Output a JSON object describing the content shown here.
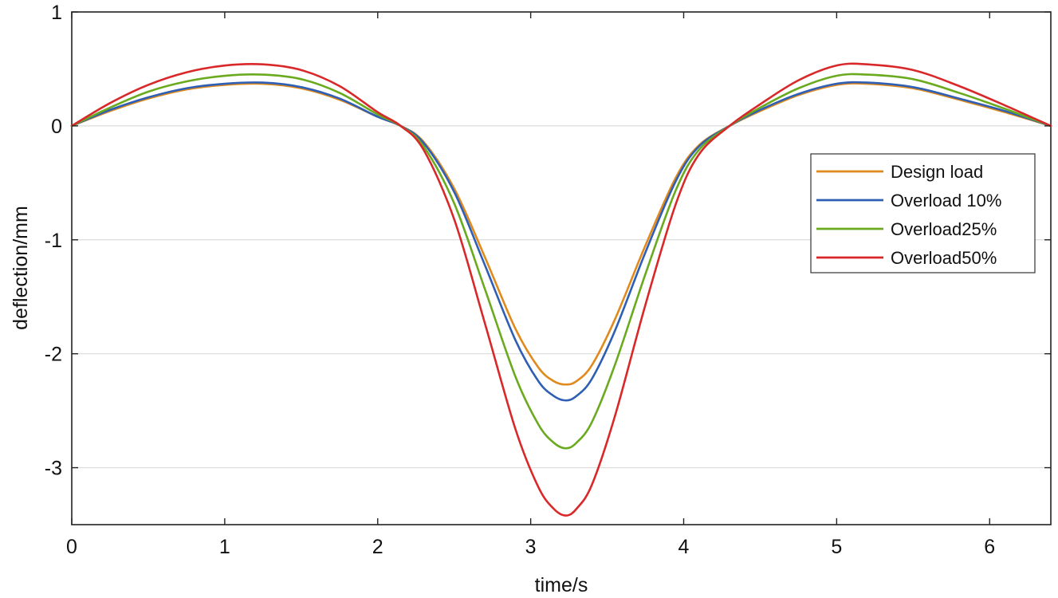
{
  "chart_data": {
    "type": "line",
    "title": "",
    "xlabel": "time/s",
    "ylabel": "deflection/mm",
    "xlim": [
      0,
      6.4
    ],
    "ylim": [
      -3.5,
      1
    ],
    "xticks": [
      0,
      1,
      2,
      3,
      4,
      5,
      6
    ],
    "yticks": [
      1,
      0,
      -1,
      -2,
      -3
    ],
    "xtick_labels": [
      "0",
      "1",
      "2",
      "3",
      "4",
      "5",
      "6"
    ],
    "ytick_labels": [
      "1",
      "0",
      "-1",
      "-2",
      "-3"
    ],
    "grid": "horizontal",
    "legend_position": "right",
    "x": [
      0,
      0.25,
      0.5,
      0.75,
      1.0,
      1.25,
      1.5,
      1.75,
      2.0,
      2.15,
      2.3,
      2.5,
      2.7,
      2.9,
      3.05,
      3.15,
      3.23,
      3.3,
      3.4,
      3.55,
      3.75,
      3.95,
      4.1,
      4.3,
      4.5,
      4.75,
      5.0,
      5.2,
      5.5,
      5.8,
      6.1,
      6.4
    ],
    "series": [
      {
        "name": "Design load",
        "color": "#e08a1e",
        "values": [
          0,
          0.13,
          0.24,
          0.32,
          0.36,
          0.37,
          0.33,
          0.23,
          0.08,
          0,
          -0.14,
          -0.55,
          -1.15,
          -1.78,
          -2.12,
          -2.24,
          -2.27,
          -2.24,
          -2.1,
          -1.7,
          -1.05,
          -0.45,
          -0.17,
          0,
          0.13,
          0.27,
          0.36,
          0.37,
          0.33,
          0.23,
          0.12,
          0
        ]
      },
      {
        "name": "Overload 10%",
        "color": "#2e5fb4",
        "values": [
          0,
          0.14,
          0.25,
          0.33,
          0.37,
          0.38,
          0.34,
          0.24,
          0.08,
          0,
          -0.15,
          -0.58,
          -1.22,
          -1.88,
          -2.24,
          -2.37,
          -2.41,
          -2.37,
          -2.22,
          -1.8,
          -1.11,
          -0.48,
          -0.18,
          0,
          0.14,
          0.28,
          0.37,
          0.38,
          0.34,
          0.24,
          0.13,
          0
        ]
      },
      {
        "name": "Overload25%",
        "color": "#6aaa1e",
        "values": [
          0,
          0.16,
          0.3,
          0.39,
          0.44,
          0.45,
          0.41,
          0.29,
          0.1,
          0,
          -0.18,
          -0.68,
          -1.43,
          -2.2,
          -2.62,
          -2.78,
          -2.83,
          -2.78,
          -2.6,
          -2.1,
          -1.3,
          -0.56,
          -0.21,
          0,
          0.16,
          0.33,
          0.44,
          0.45,
          0.41,
          0.29,
          0.15,
          0
        ]
      },
      {
        "name": "Overload50%",
        "color": "#d9282a",
        "values": [
          0,
          0.2,
          0.36,
          0.47,
          0.53,
          0.54,
          0.49,
          0.35,
          0.12,
          0,
          -0.21,
          -0.82,
          -1.73,
          -2.66,
          -3.17,
          -3.36,
          -3.42,
          -3.36,
          -3.15,
          -2.55,
          -1.57,
          -0.68,
          -0.25,
          0,
          0.19,
          0.4,
          0.53,
          0.54,
          0.49,
          0.35,
          0.18,
          0
        ]
      }
    ]
  }
}
